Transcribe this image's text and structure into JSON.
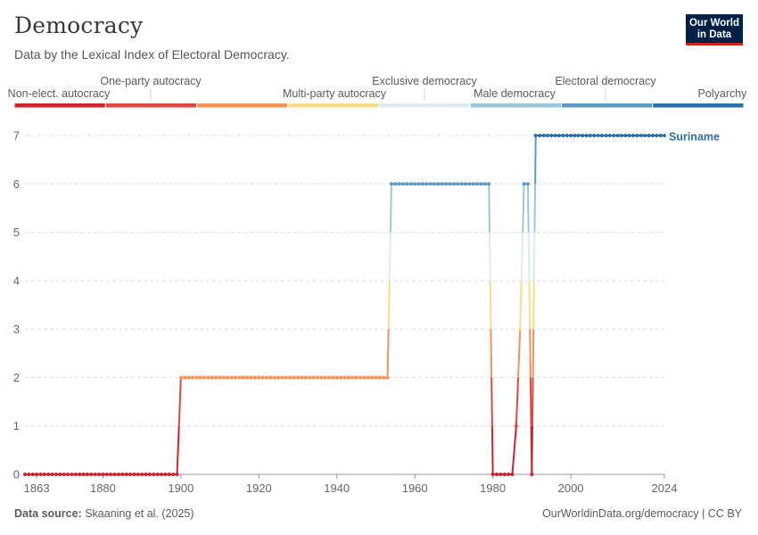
{
  "header": {
    "title": "Democracy",
    "subtitle": "Data by the Lexical Index of Electoral Democracy.",
    "logo_line1": "Our World",
    "logo_line2": "in Data"
  },
  "legend": {
    "categories": [
      {
        "label": "Non-elect. autocracy",
        "color": "#d1232a"
      },
      {
        "label": "One-party autocracy",
        "color": "#e0483b"
      },
      {
        "label": "Multi-party autocracy",
        "color": "#f3935a"
      },
      {
        "label": "Exclusive democracy",
        "color": "#f7dd88"
      },
      {
        "label": "Male democracy",
        "color": "#dcebf5"
      },
      {
        "label": "Electoral democracy",
        "color": "#9cc6dc"
      },
      {
        "label": "Polyarchy",
        "color": "#5b9ac7"
      },
      {
        "label": "",
        "color": "#2c6fa8"
      }
    ]
  },
  "chart_data": {
    "type": "line",
    "title": "Democracy",
    "xlabel": "",
    "ylabel": "",
    "xlim": [
      1860,
      2024
    ],
    "ylim": [
      0,
      7
    ],
    "x_ticks": [
      "1863",
      "1880",
      "1900",
      "1920",
      "1940",
      "1960",
      "1980",
      "2000",
      "2024"
    ],
    "y_ticks": [
      "0",
      "1",
      "2",
      "3",
      "4",
      "5",
      "6",
      "7"
    ],
    "grid": true,
    "series": [
      {
        "name": "Suriname",
        "segments": [
          {
            "from": 1860,
            "to": 1899,
            "value": 0
          },
          {
            "from": 1900,
            "to": 1953,
            "value": 2
          },
          {
            "from": 1954,
            "to": 1979,
            "value": 6
          },
          {
            "from": 1980,
            "to": 1985,
            "value": 0
          },
          {
            "from": 1986,
            "to": 1986,
            "value": 1
          },
          {
            "from": 1987,
            "to": 1987,
            "value": 3
          },
          {
            "from": 1988,
            "to": 1989,
            "value": 6
          },
          {
            "from": 1990,
            "to": 1990,
            "value": 0
          },
          {
            "from": 1991,
            "to": 2024,
            "value": 7
          }
        ]
      }
    ],
    "level_colors": [
      "#d1232a",
      "#e0483b",
      "#f3935a",
      "#f7dd88",
      "#dcebf5",
      "#9cc6dc",
      "#5b9ac7",
      "#2c6fa8"
    ],
    "series_label_color": "#2c6fa8"
  },
  "footer": {
    "source_label": "Data source:",
    "source_text": "Skaaning et al. (2025)",
    "url_text": "OurWorldinData.org/democracy | CC BY"
  }
}
